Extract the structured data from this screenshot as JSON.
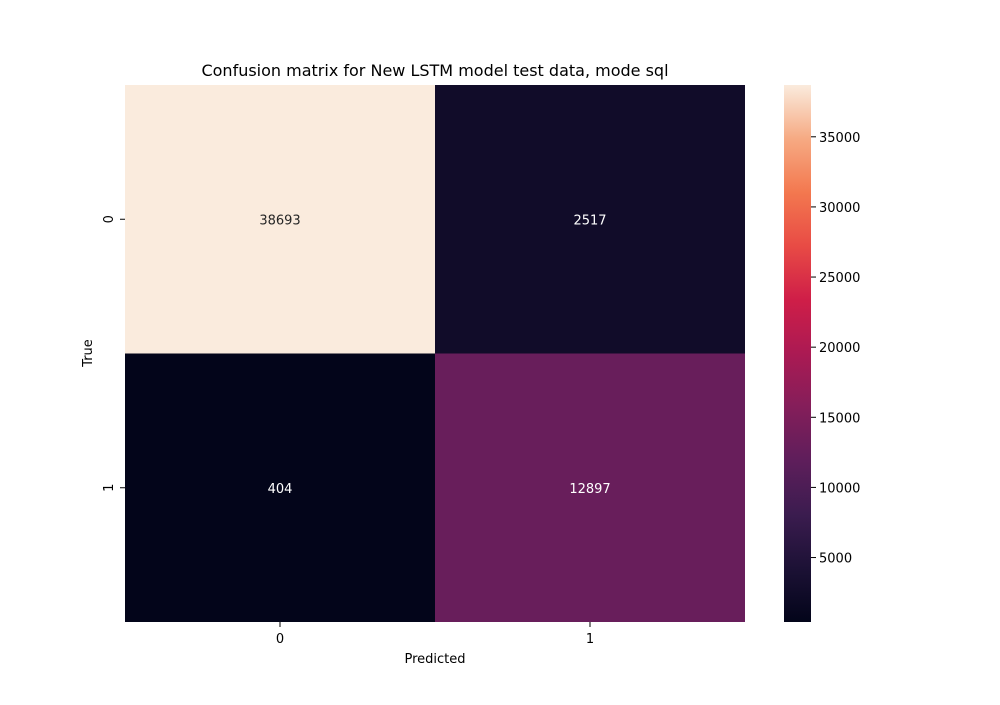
{
  "chart_data": {
    "type": "heatmap",
    "title": "Confusion matrix for New LSTM model test data, mode sql",
    "xlabel": "Predicted",
    "ylabel": "True",
    "x_categories": [
      "0",
      "1"
    ],
    "y_categories": [
      "0",
      "1"
    ],
    "values": [
      [
        38693,
        2517
      ],
      [
        404,
        12897
      ]
    ],
    "cell_labels": [
      [
        "38693",
        "2517"
      ],
      [
        "404",
        "12897"
      ]
    ],
    "colorbar": {
      "colormap": "rocket",
      "min": 404,
      "max": 38693,
      "ticks": [
        5000,
        10000,
        15000,
        20000,
        25000,
        30000,
        35000
      ],
      "tick_labels": [
        "5000",
        "10000",
        "15000",
        "20000",
        "25000",
        "30000",
        "35000"
      ]
    },
    "grid": false,
    "legend": "none"
  }
}
